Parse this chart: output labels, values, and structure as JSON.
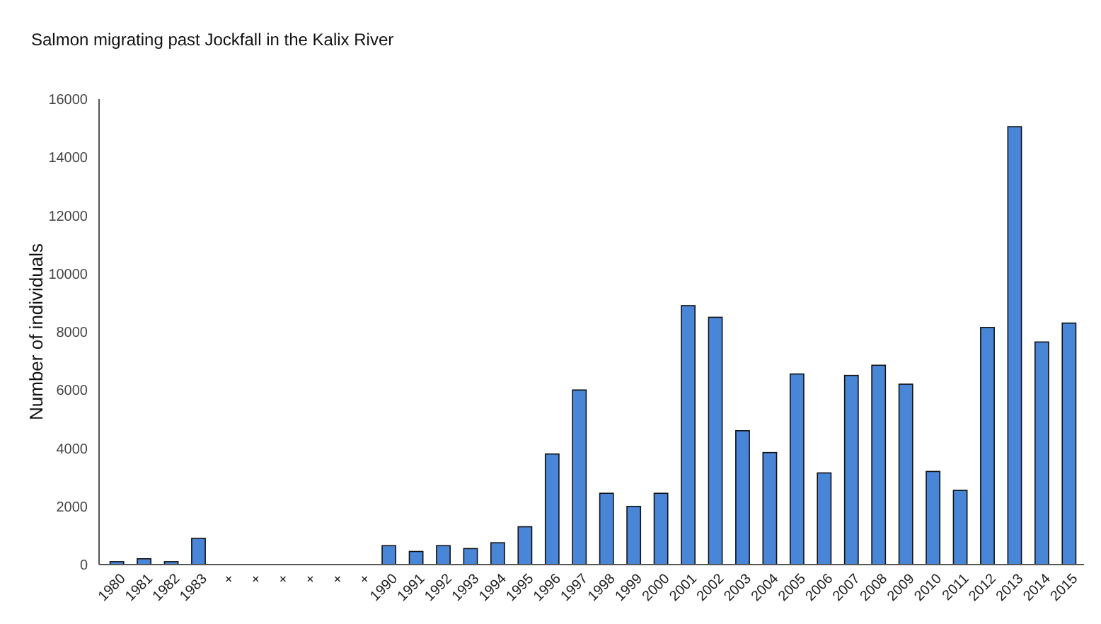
{
  "chart_data": {
    "type": "bar",
    "title": "Salmon migrating past Jockfall in the Kalix River",
    "ylabel": "Number of individuals",
    "categories": [
      "1980",
      "1981",
      "1982",
      "1983",
      "+",
      "+",
      "+",
      "+",
      "+",
      "+",
      "1990",
      "1991",
      "1992",
      "1993",
      "1994",
      "1995",
      "1996",
      "1997",
      "1998",
      "1999",
      "2000",
      "2001",
      "2002",
      "2003",
      "2004",
      "2005",
      "2006",
      "2007",
      "2008",
      "2009",
      "2010",
      "2011",
      "2012",
      "2013",
      "2014",
      "2015"
    ],
    "values": [
      100,
      200,
      100,
      900,
      null,
      null,
      null,
      null,
      null,
      null,
      650,
      450,
      650,
      550,
      750,
      1300,
      3800,
      6000,
      2450,
      2000,
      2450,
      8900,
      8500,
      4600,
      3850,
      6550,
      3150,
      6500,
      6850,
      6200,
      3200,
      2550,
      8150,
      15050,
      7650,
      8300
    ],
    "color": "#4a86d8",
    "ylim": [
      0,
      16000
    ],
    "yticks": [
      0,
      2000,
      4000,
      6000,
      8000,
      10000,
      12000,
      14000,
      16000
    ],
    "grid": false
  }
}
